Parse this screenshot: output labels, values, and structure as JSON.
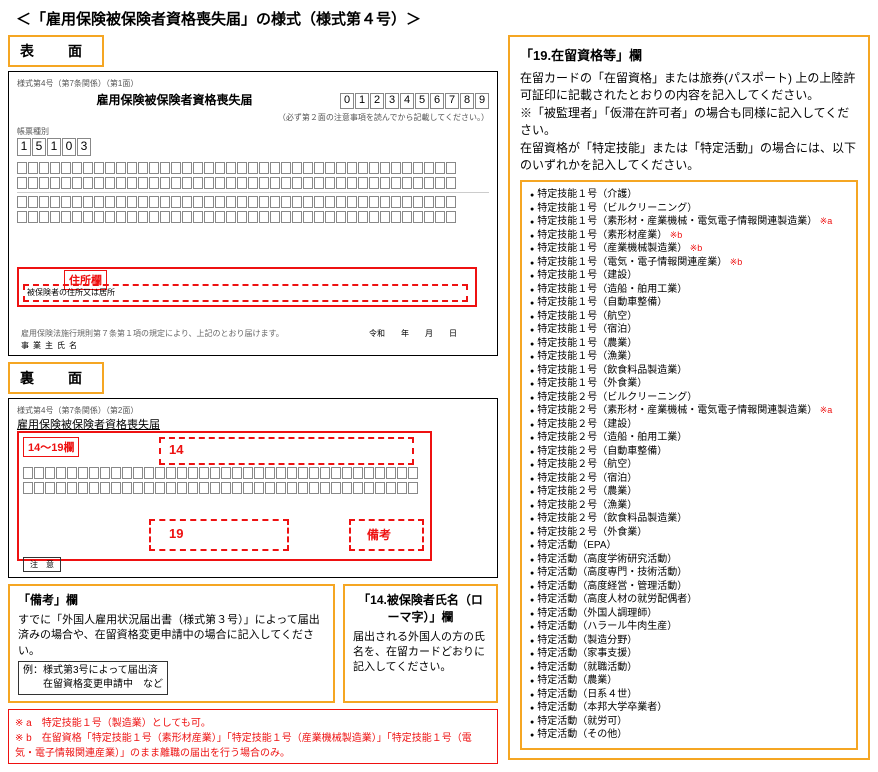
{
  "title": "＜「雇用保険被保険者資格喪失届」の様式（様式第４号）＞",
  "front_label": "表　面",
  "back_label": "裏　面",
  "form_code_front": "様式第4号（第7条関係）（第1面）",
  "form_code_back": "様式第4号（第7条関係）（第2面）",
  "form_title": "雇用保険被保険者資格喪失届",
  "sample_num_label": "帳票種別",
  "sample_digits": [
    "0",
    "1",
    "2",
    "3",
    "4",
    "5",
    "6",
    "7",
    "8",
    "9"
  ],
  "sample_val": [
    "1",
    "5",
    "1",
    "0",
    "3"
  ],
  "addr_tag": "住所欄",
  "addr_field_label": "被保険者の住所又は居所",
  "section14_19_tag": "14～19欄",
  "num14": "14",
  "num19": "19",
  "biko_tag": "備考",
  "right": {
    "heading": "「19.在留資格等」欄",
    "para1": "在留カードの「在留資格」または旅券(パスポート)  上の上陸許可証印に記載されたとおりの内容を記入してください。",
    "para2": "※「被監理者」「仮滞在許可者」の場合も同様に記入してください。",
    "para3": "在留資格が「特定技能」または「特定活動」の場合には、以下のいずれかを記入してください。",
    "items": [
      {
        "t": "特定技能１号（介護）"
      },
      {
        "t": "特定技能１号（ビルクリーニング）"
      },
      {
        "t": "特定技能１号（素形材・産業機械・電気電子情報関連製造業）",
        "a": "※a"
      },
      {
        "t": "特定技能１号（素形材産業）",
        "a": "※b"
      },
      {
        "t": "特定技能１号（産業機械製造業）",
        "a": "※b"
      },
      {
        "t": "特定技能１号（電気・電子情報関連産業）",
        "a": "※b"
      },
      {
        "t": "特定技能１号（建設）"
      },
      {
        "t": "特定技能１号（造船・舶用工業）"
      },
      {
        "t": "特定技能１号（自動車整備）"
      },
      {
        "t": "特定技能１号（航空）"
      },
      {
        "t": "特定技能１号（宿泊）"
      },
      {
        "t": "特定技能１号（農業）"
      },
      {
        "t": "特定技能１号（漁業）"
      },
      {
        "t": "特定技能１号（飲食料品製造業）"
      },
      {
        "t": "特定技能１号（外食業）"
      },
      {
        "t": "特定技能２号（ビルクリーニング）"
      },
      {
        "t": "特定技能２号（素形材・産業機械・電気電子情報関連製造業）",
        "a": "※a"
      },
      {
        "t": "特定技能２号（建設）"
      },
      {
        "t": "特定技能２号（造船・舶用工業）"
      },
      {
        "t": "特定技能２号（自動車整備）"
      },
      {
        "t": "特定技能２号（航空）"
      },
      {
        "t": "特定技能２号（宿泊）"
      },
      {
        "t": "特定技能２号（農業）"
      },
      {
        "t": "特定技能２号（漁業）"
      },
      {
        "t": "特定技能２号（飲食料品製造業）"
      },
      {
        "t": "特定技能２号（外食業）"
      },
      {
        "t": "特定活動（EPA）"
      },
      {
        "t": "特定活動（高度学術研究活動）"
      },
      {
        "t": "特定活動（高度専門・技術活動）"
      },
      {
        "t": "特定活動（高度経営・管理活動）"
      },
      {
        "t": "特定活動（高度人材の就労配偶者）"
      },
      {
        "t": "特定活動（外国人調理師）"
      },
      {
        "t": "特定活動（ハラール牛肉生産）"
      },
      {
        "t": "特定活動（製造分野）"
      },
      {
        "t": "特定活動（家事支援）"
      },
      {
        "t": "特定活動（就職活動）"
      },
      {
        "t": "特定活動（農業）"
      },
      {
        "t": "特定活動（日系４世）"
      },
      {
        "t": "特定活動（本邦大学卒業者）"
      },
      {
        "t": "特定活動（就労可）"
      },
      {
        "t": "特定活動（その他）"
      }
    ]
  },
  "biko_box": {
    "heading": "「備考」欄",
    "text": "すでに「外国人雇用状況届出書（様式第３号）」によって届出済みの場合や、在留資格変更申請中の場合に記入してください。",
    "example": "例：様式第3号によって届出済\n　　在留資格変更申請中　など"
  },
  "name_box": {
    "heading": "「14.被保険者氏名（ローマ字）」欄",
    "text": "届出される外国人の方の氏名を、在留カードどおりに記入してください。"
  },
  "footnote": {
    "a": "※ a　特定技能１号（製造業）としても可。",
    "b": "※ b　在留資格「特定技能１号（素形材産業）」「特定技能１号（産業機械製造業）」「特定技能１号（電気・電子情報関連産業）」のまま離職の届出を行う場合のみ。"
  }
}
